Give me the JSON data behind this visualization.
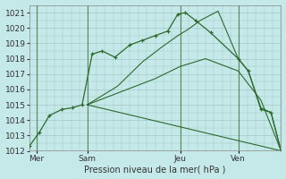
{
  "xlabel": "Pression niveau de la mer( hPa )",
  "bg_color": "#c5e8e8",
  "grid_color": "#a0c8c8",
  "line_color": "#2d6a2d",
  "vline_color": "#5a8a5a",
  "ylim": [
    1012,
    1021.5
  ],
  "xlim": [
    0,
    10
  ],
  "yticks": [
    1012,
    1013,
    1014,
    1015,
    1016,
    1017,
    1018,
    1019,
    1020,
    1021
  ],
  "xtick_positions": [
    0.3,
    2.3,
    6.0,
    8.3
  ],
  "xtick_labels": [
    "Mer",
    "Sam",
    "Jeu",
    "Ven"
  ],
  "vlines": [
    0.3,
    2.3,
    6.0,
    8.3
  ],
  "lines": [
    {
      "x": [
        0.0,
        0.4,
        0.8,
        1.3,
        1.7,
        2.1,
        2.5,
        2.9,
        3.4,
        4.0,
        4.5,
        5.0,
        5.5,
        5.9,
        6.2,
        6.6,
        7.2,
        8.3,
        8.7,
        9.2,
        9.6,
        10.0
      ],
      "y": [
        1012.3,
        1013.2,
        1014.3,
        1014.7,
        1014.8,
        1015.0,
        1018.3,
        1018.5,
        1018.1,
        1018.9,
        1019.2,
        1019.5,
        1019.8,
        1020.9,
        1021.0,
        1020.5,
        1019.7,
        1018.0,
        1017.2,
        1014.7,
        1014.5,
        1012.0
      ],
      "marker": true
    },
    {
      "x": [
        2.3,
        3.5,
        4.5,
        5.3,
        5.9,
        6.3,
        6.8,
        7.5,
        8.3,
        8.7,
        9.2,
        9.6,
        10.0
      ],
      "y": [
        1015.0,
        1016.2,
        1017.8,
        1018.8,
        1019.5,
        1019.9,
        1020.5,
        1021.1,
        1018.0,
        1017.2,
        1014.8,
        1014.5,
        1012.0
      ],
      "marker": false
    },
    {
      "x": [
        2.3,
        5.0,
        6.0,
        7.0,
        8.3,
        9.2,
        10.0
      ],
      "y": [
        1015.0,
        1016.7,
        1017.5,
        1018.0,
        1017.2,
        1015.3,
        1012.0
      ],
      "marker": false
    },
    {
      "x": [
        2.3,
        10.0
      ],
      "y": [
        1015.0,
        1012.0
      ],
      "marker": false
    }
  ]
}
